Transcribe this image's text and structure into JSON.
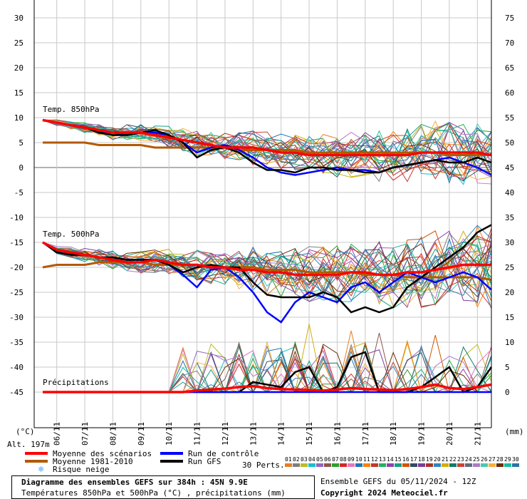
{
  "chart_data": {
    "type": "line",
    "title": "Diagramme des ensembles GEFS sur 384h : 45N 9.9E",
    "subtitle": "Températures 850hPa et 500hPa (°C) , précipitations (mm)",
    "ensemble_label": "Ensemble GEFS du 05/11/2024 - 12Z",
    "copyright": "Copyright 2024 Meteociel.fr",
    "altitude_label": "Alt. 197m",
    "left_axis_unit": "(°C)",
    "right_axis_unit": "(mm)",
    "left_ticks": [
      "30",
      "25",
      "20",
      "15",
      "10",
      "5",
      "0",
      "-5",
      "-10",
      "-15",
      "-20",
      "-25",
      "-30",
      "-35",
      "-40",
      "-45"
    ],
    "right_ticks": [
      "75",
      "70",
      "65",
      "60",
      "55",
      "50",
      "45",
      "40",
      "35",
      "30",
      "25",
      "20",
      "15",
      "10",
      "5",
      "0"
    ],
    "y_range": [
      -45,
      30
    ],
    "right_axis_range": [
      0,
      75
    ],
    "x_dates": [
      "06/11",
      "07/11",
      "08/11",
      "09/11",
      "10/11",
      "11/11",
      "12/11",
      "13/11",
      "14/11",
      "15/11",
      "16/11",
      "17/11",
      "18/11",
      "19/11",
      "20/11",
      "21/11"
    ],
    "x_range_hours": [
      0,
      384
    ],
    "grid": true,
    "section_labels": {
      "t850": "Temp. 850hPa",
      "t500": "Temp. 500hPa",
      "precip": "Précipitations"
    },
    "legend": {
      "mean": "Moyenne des scénarios",
      "climate": "Moyenne 1981-2010",
      "snow": "Risque neige",
      "control": "Run de contrôle",
      "gfs": "Run GFS",
      "perts_label": "30 Perts.",
      "pert_numbers": [
        "01",
        "02",
        "03",
        "04",
        "05",
        "06",
        "07",
        "08",
        "09",
        "10",
        "11",
        "12",
        "13",
        "14",
        "15",
        "16",
        "17",
        "18",
        "19",
        "20",
        "21",
        "22",
        "23",
        "24",
        "25",
        "26",
        "27",
        "28",
        "29",
        "30"
      ]
    },
    "pert_colors": [
      "#e67e22",
      "#7f7f7f",
      "#bcbd22",
      "#17becf",
      "#9467bd",
      "#8c564b",
      "#2ca02c",
      "#d62728",
      "#e377c2",
      "#1f77b4",
      "#ff7f0e",
      "#c0392b",
      "#27ae60",
      "#8e44ad",
      "#16a085",
      "#d35400",
      "#34495e",
      "#7d3c98",
      "#a93226",
      "#2e86c1",
      "#d4ac0d",
      "#117a65",
      "#cb4335",
      "#5d6d7e",
      "#af7ac5",
      "#48c9b0",
      "#f5b041",
      "#6e2c00",
      "#1abc9c",
      "#2874a6"
    ],
    "colors": {
      "mean": "#ff0000",
      "climate": "#b35900",
      "control": "#0000ff",
      "gfs": "#000000",
      "snow": "#4da6ff"
    },
    "hours": [
      0,
      12,
      24,
      36,
      48,
      60,
      72,
      84,
      96,
      108,
      120,
      132,
      144,
      156,
      168,
      180,
      192,
      204,
      216,
      228,
      240,
      252,
      264,
      276,
      288,
      300,
      312,
      324,
      336,
      348,
      360,
      372,
      384
    ],
    "t850": {
      "mean": [
        9.5,
        9,
        8.5,
        8,
        7.5,
        7,
        7,
        7,
        6.5,
        6,
        5.5,
        5,
        4.5,
        4,
        4,
        4,
        3.5,
        3,
        3,
        2.5,
        2.5,
        2.5,
        2.5,
        2.5,
        2.5,
        2.5,
        2.5,
        3,
        3,
        3,
        3,
        3,
        2.5
      ],
      "climate": [
        5,
        5,
        5,
        5,
        4.5,
        4.5,
        4.5,
        4.5,
        4,
        4,
        4,
        4,
        4,
        4,
        3.5,
        3.5,
        3.5,
        3.5,
        3.5,
        3,
        3,
        3,
        3,
        3,
        3,
        3,
        3,
        3,
        3,
        2.5,
        2.5,
        2.5,
        2.5
      ],
      "control": [
        9.5,
        9,
        8.5,
        8,
        7,
        7,
        6.5,
        7,
        7,
        6.5,
        5,
        3,
        4,
        4.5,
        3.5,
        2,
        0,
        -1,
        -1.5,
        -1,
        -0.5,
        0,
        -0.5,
        -0.5,
        -1,
        0,
        0.5,
        1,
        1.5,
        2,
        1,
        0,
        -1.5
      ],
      "gfs": [
        9.5,
        9,
        8.5,
        8,
        7,
        6.5,
        6.5,
        7,
        7.5,
        6.5,
        5,
        2,
        3.5,
        4,
        3,
        1,
        -0.5,
        -0.5,
        -1,
        0,
        0,
        -0.5,
        -0.5,
        -1,
        -1,
        0,
        0.5,
        1,
        1.5,
        1,
        1,
        2,
        1
      ]
    },
    "t500": {
      "mean": [
        -15,
        -16.5,
        -17,
        -17.5,
        -18,
        -18.5,
        -19,
        -19,
        -18.5,
        -19,
        -19.5,
        -19.5,
        -20,
        -20,
        -20.5,
        -20.5,
        -21,
        -21,
        -21.5,
        -21.5,
        -21.5,
        -21.5,
        -21,
        -21,
        -21.5,
        -21.5,
        -21,
        -21,
        -20.5,
        -20,
        -19.5,
        -19.5,
        -19.5
      ],
      "climate": [
        -20,
        -19.5,
        -19.5,
        -19.5,
        -19,
        -19,
        -19,
        -19,
        -19.5,
        -19.5,
        -19.5,
        -19.5,
        -20,
        -20,
        -20,
        -20,
        -20.5,
        -20.5,
        -20.5,
        -21,
        -21,
        -21,
        -21,
        -21.5,
        -21.5,
        -21.5,
        -22,
        -22,
        -22,
        -22,
        -22,
        -22,
        -22.5
      ],
      "control": [
        -15,
        -17,
        -17.5,
        -17.5,
        -18,
        -18,
        -18.5,
        -18.5,
        -18.5,
        -19.5,
        -21.5,
        -24,
        -20.5,
        -20,
        -22,
        -25,
        -29,
        -31,
        -27,
        -25,
        -26,
        -27,
        -24,
        -23,
        -25,
        -23,
        -21,
        -22,
        -23,
        -22,
        -21,
        -22,
        -24.5
      ],
      "gfs": [
        -15,
        -17,
        -17.5,
        -17.5,
        -18,
        -18,
        -18.5,
        -18.5,
        -18.5,
        -19.5,
        -21,
        -20,
        -19.5,
        -20,
        -20,
        -23,
        -25.5,
        -26,
        -26,
        -26,
        -25,
        -26,
        -29,
        -28,
        -29,
        -28,
        -24,
        -22,
        -20,
        -18,
        -16,
        -13,
        -11.5
      ]
    },
    "precip_mm": {
      "mean": [
        0,
        0,
        0,
        0,
        0,
        0,
        0,
        0,
        0,
        0,
        0,
        0.3,
        0.5,
        0.7,
        1,
        1.2,
        0.8,
        0.6,
        0.5,
        0.4,
        0.3,
        0.5,
        0.8,
        0.6,
        0.5,
        0.4,
        0.6,
        1,
        1.5,
        0.8,
        0.6,
        1,
        1.5
      ],
      "control": [
        0,
        0,
        0,
        0,
        0,
        0,
        0,
        0,
        0,
        0,
        0,
        0,
        0,
        0,
        0,
        0,
        0,
        0,
        0,
        0,
        0,
        0,
        0,
        0,
        0,
        0,
        0,
        0,
        0,
        0,
        0,
        0,
        0
      ],
      "gfs": [
        0,
        0,
        0,
        0,
        0,
        0,
        0,
        0,
        0,
        0,
        0,
        0,
        0,
        0,
        0,
        2,
        1.5,
        1,
        4,
        5,
        0,
        1,
        7,
        8,
        0,
        0,
        0,
        1,
        3,
        5,
        0,
        1,
        5
      ]
    }
  }
}
